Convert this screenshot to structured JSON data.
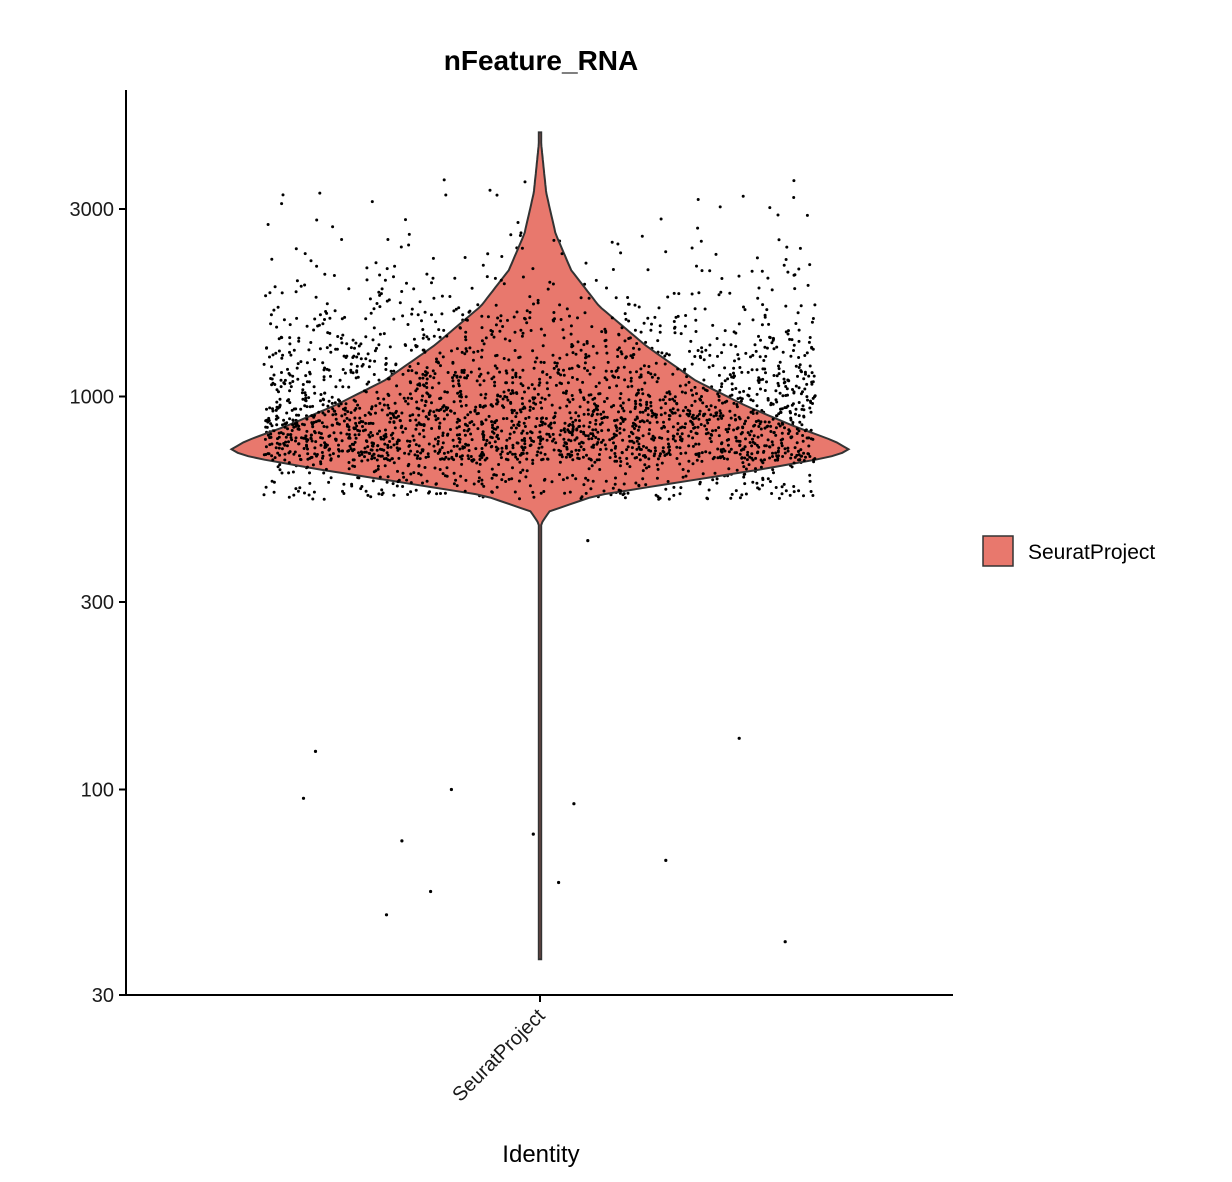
{
  "chart_data": {
    "type": "violin",
    "title": "nFeature_RNA",
    "xlabel": "Identity",
    "ylabel": "",
    "y_scale": "log10",
    "ylim": [
      30,
      5000
    ],
    "y_ticks": [
      {
        "value": 30,
        "label": "30"
      },
      {
        "value": 100,
        "label": "100"
      },
      {
        "value": 300,
        "label": "300"
      },
      {
        "value": 1000,
        "label": "1000"
      },
      {
        "value": 3000,
        "label": "3000"
      }
    ],
    "categories": [
      "SeuratProject"
    ],
    "series": [
      {
        "name": "SeuratProject",
        "color": "#E8786D",
        "min": 37,
        "max": 4700,
        "mode": 720,
        "n_points": 2700,
        "density_profile": [
          {
            "value": 37,
            "half_width": 0.0
          },
          {
            "value": 100,
            "half_width": 0.0
          },
          {
            "value": 470,
            "half_width": 0.0
          },
          {
            "value": 510,
            "half_width": 0.03
          },
          {
            "value": 560,
            "half_width": 0.18
          },
          {
            "value": 600,
            "half_width": 0.42
          },
          {
            "value": 650,
            "half_width": 0.7
          },
          {
            "value": 700,
            "half_width": 0.93
          },
          {
            "value": 730,
            "half_width": 1.0
          },
          {
            "value": 770,
            "half_width": 0.95
          },
          {
            "value": 840,
            "half_width": 0.82
          },
          {
            "value": 950,
            "half_width": 0.66
          },
          {
            "value": 1100,
            "half_width": 0.5
          },
          {
            "value": 1350,
            "half_width": 0.34
          },
          {
            "value": 1700,
            "half_width": 0.19
          },
          {
            "value": 2100,
            "half_width": 0.1
          },
          {
            "value": 2600,
            "half_width": 0.05
          },
          {
            "value": 3300,
            "half_width": 0.02
          },
          {
            "value": 4700,
            "half_width": 0.0
          }
        ],
        "outliers": [
          {
            "value": 430
          },
          {
            "value": 135
          },
          {
            "value": 125
          },
          {
            "value": 100
          },
          {
            "value": 95
          },
          {
            "value": 92
          },
          {
            "value": 77
          },
          {
            "value": 74
          },
          {
            "value": 66
          },
          {
            "value": 58
          },
          {
            "value": 55
          },
          {
            "value": 48
          },
          {
            "value": 41
          }
        ]
      }
    ],
    "legend": {
      "position": "right",
      "entries": [
        {
          "label": "SeuratProject",
          "color": "#E8786D"
        }
      ]
    },
    "grid": false
  }
}
